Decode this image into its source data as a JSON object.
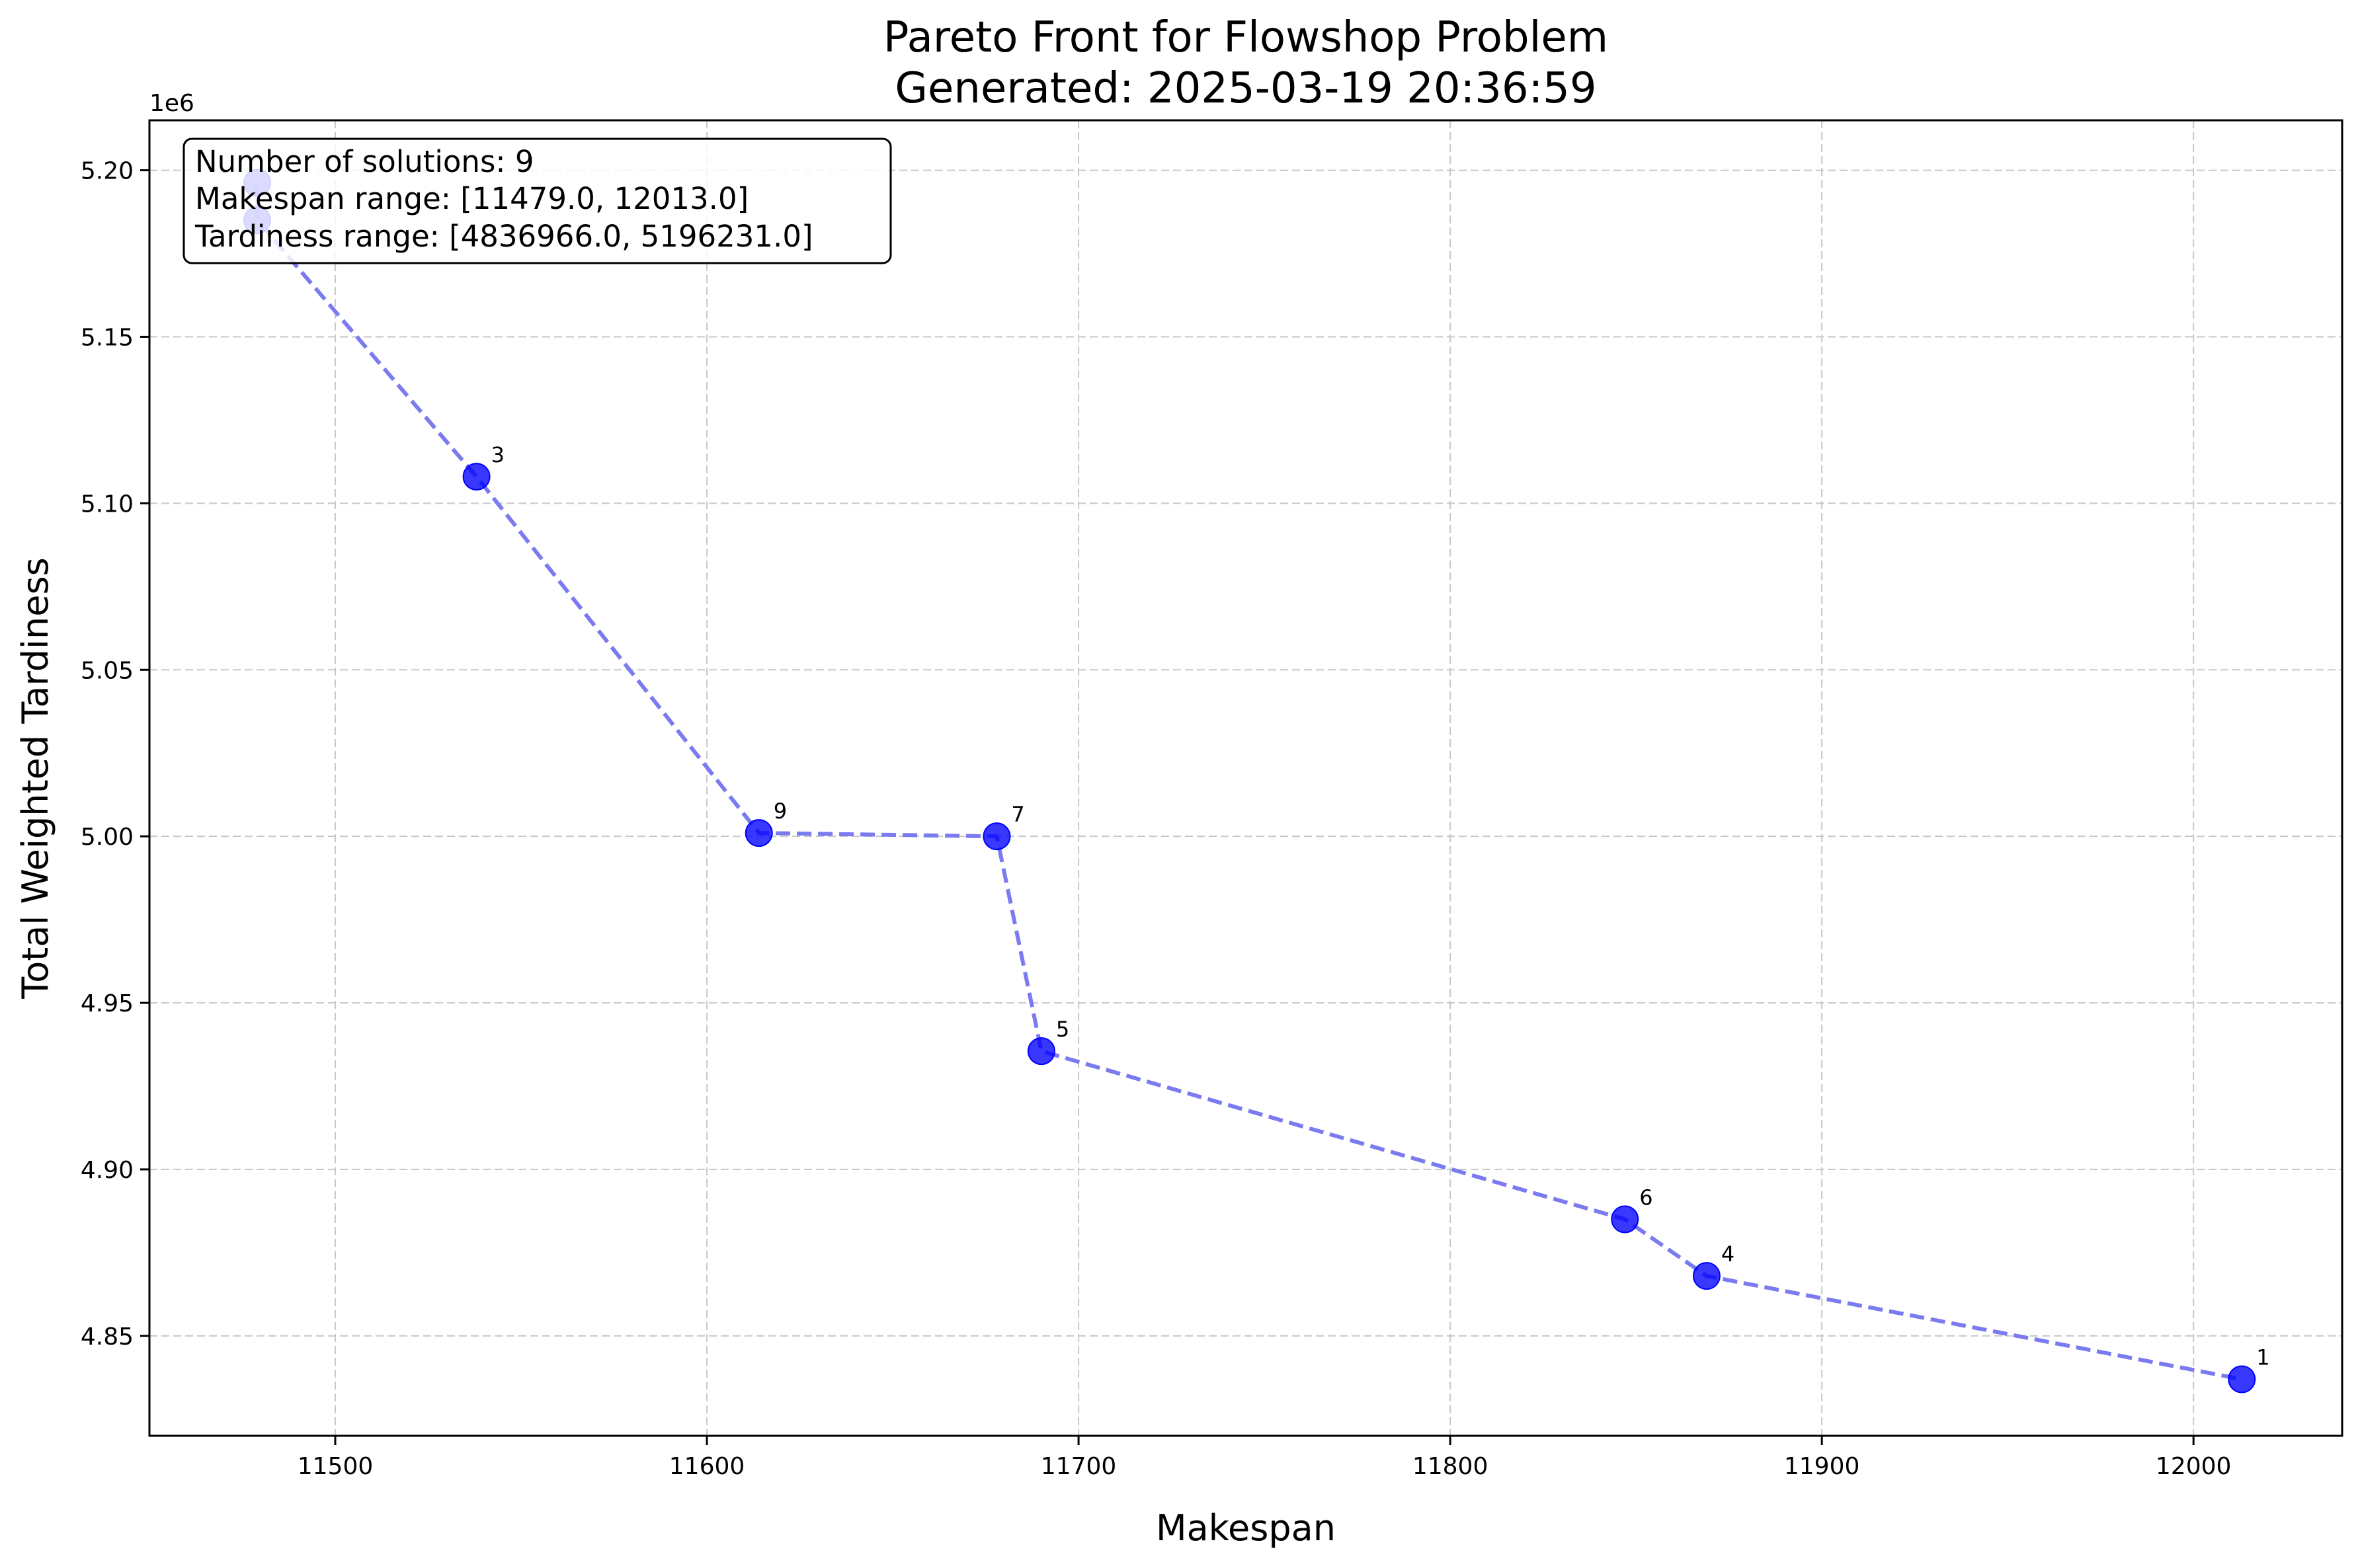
{
  "chart_data": {
    "type": "scatter",
    "title": "Pareto Front for Flowshop Problem",
    "subtitle": "Generated: 2025-03-19 20:36:59",
    "xlabel": "Makespan",
    "ylabel": "Total Weighted Tardiness",
    "y_offset_label": "1e6",
    "xlim": [
      11450,
      12040
    ],
    "ylim": [
      4820000,
      5215000
    ],
    "x_ticks": [
      11500,
      11600,
      11700,
      11800,
      11900,
      12000
    ],
    "x_tick_labels": [
      "11500",
      "11600",
      "11700",
      "11800",
      "11900",
      "12000"
    ],
    "y_ticks": [
      4850000,
      4900000,
      4950000,
      5000000,
      5050000,
      5100000,
      5150000,
      5200000
    ],
    "y_tick_labels": [
      "4.85",
      "4.90",
      "4.95",
      "5.00",
      "5.05",
      "5.10",
      "5.15",
      "5.20"
    ],
    "grid": true,
    "colors": {
      "points": "#0000ff",
      "line": "#7b7bf0",
      "grid": "#c8c8c8"
    },
    "series": [
      {
        "points": [
          {
            "label": "",
            "x": 11479,
            "y": 5196231
          },
          {
            "label": "",
            "x": 11479,
            "y": 5185000
          },
          {
            "label": "3",
            "x": 11538,
            "y": 5108000
          },
          {
            "label": "9",
            "x": 11614,
            "y": 5001000
          },
          {
            "label": "7",
            "x": 11678,
            "y": 5000000
          },
          {
            "label": "5",
            "x": 11690,
            "y": 4935500
          },
          {
            "label": "6",
            "x": 11847,
            "y": 4885000
          },
          {
            "label": "4",
            "x": 11869,
            "y": 4868000
          },
          {
            "label": "1",
            "x": 12013,
            "y": 4836966
          }
        ]
      }
    ],
    "info_box": [
      "Number of solutions: 9",
      "Makespan range: [11479.0, 12013.0]",
      "Tardiness range: [4836966.0, 5196231.0]"
    ]
  }
}
